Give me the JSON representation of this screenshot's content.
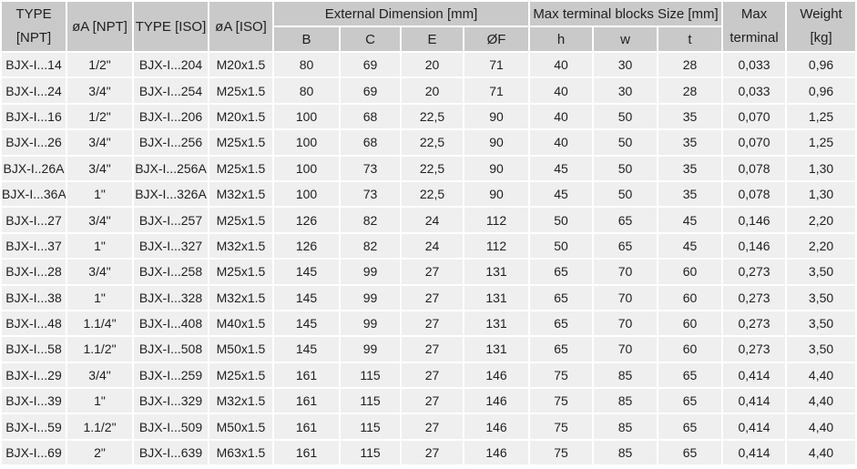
{
  "table": {
    "group_headers": {
      "external_dimension": "External Dimension [mm]",
      "max_terminal_blocks": "Max terminal blocks Size [mm]"
    },
    "headers": {
      "type_npt_line1": "TYPE",
      "type_npt_line2": "[NPT]",
      "dia_a_npt": "øA [NPT]",
      "type_iso": "TYPE [ISO]",
      "dia_a_iso": "øA [ISO]",
      "b": "B",
      "c": "C",
      "e": "E",
      "f": "ØF",
      "h": "h",
      "w": "w",
      "t": "t",
      "max_terminal_line1": "Max",
      "max_terminal_line2": "terminal",
      "weight_line1": "Weight",
      "weight_line2": "[kg]"
    },
    "column_ids": [
      "type-npt",
      "dia-a-npt",
      "type-iso",
      "dia-a-iso",
      "b",
      "c",
      "e",
      "f",
      "h",
      "w",
      "t",
      "max-terminal",
      "weight-kg"
    ],
    "rows": [
      [
        "BJX-I...14",
        "1/2\"",
        "BJX-I...204",
        "M20x1.5",
        "80",
        "69",
        "20",
        "71",
        "40",
        "30",
        "28",
        "0,033",
        "0,96"
      ],
      [
        "BJX-I...24",
        "3/4\"",
        "BJX-I...254",
        "M25x1.5",
        "80",
        "69",
        "20",
        "71",
        "40",
        "30",
        "28",
        "0,033",
        "0,96"
      ],
      [
        "BJX-I...16",
        "1/2\"",
        "BJX-I...206",
        "M20x1.5",
        "100",
        "68",
        "22,5",
        "90",
        "40",
        "50",
        "35",
        "0,070",
        "1,25"
      ],
      [
        "BJX-I...26",
        "3/4\"",
        "BJX-I...256",
        "M25x1.5",
        "100",
        "68",
        "22,5",
        "90",
        "40",
        "50",
        "35",
        "0,070",
        "1,25"
      ],
      [
        "BJX-I..26A",
        "3/4\"",
        "BJX-I...256A",
        "M25x1.5",
        "100",
        "73",
        "22,5",
        "90",
        "45",
        "50",
        "35",
        "0,078",
        "1,30"
      ],
      [
        "BJX-I...36A",
        "1\"",
        "BJX-I...326A",
        "M32x1.5",
        "100",
        "73",
        "22,5",
        "90",
        "45",
        "50",
        "35",
        "0,078",
        "1,30"
      ],
      [
        "BJX-I...27",
        "3/4\"",
        "BJX-I...257",
        "M25x1.5",
        "126",
        "82",
        "24",
        "112",
        "50",
        "65",
        "45",
        "0,146",
        "2,20"
      ],
      [
        "BJX-I...37",
        "1\"",
        "BJX-I...327",
        "M32x1.5",
        "126",
        "82",
        "24",
        "112",
        "50",
        "65",
        "45",
        "0,146",
        "2,20"
      ],
      [
        "BJX-I...28",
        "3/4\"",
        "BJX-I...258",
        "M25x1.5",
        "145",
        "99",
        "27",
        "131",
        "65",
        "70",
        "60",
        "0,273",
        "3,50"
      ],
      [
        "BJX-I...38",
        "1\"",
        "BJX-I...328",
        "M32x1.5",
        "145",
        "99",
        "27",
        "131",
        "65",
        "70",
        "60",
        "0,273",
        "3,50"
      ],
      [
        "BJX-I...48",
        "1.1/4\"",
        "BJX-I...408",
        "M40x1.5",
        "145",
        "99",
        "27",
        "131",
        "65",
        "70",
        "60",
        "0,273",
        "3,50"
      ],
      [
        "BJX-I...58",
        "1.1/2\"",
        "BJX-I...508",
        "M50x1.5",
        "145",
        "99",
        "27",
        "131",
        "65",
        "70",
        "60",
        "0,273",
        "3,50"
      ],
      [
        "BJX-I...29",
        "3/4\"",
        "BJX-I...259",
        "M25x1.5",
        "161",
        "115",
        "27",
        "146",
        "75",
        "85",
        "65",
        "0,414",
        "4,40"
      ],
      [
        "BJX-I...39",
        "1\"",
        "BJX-I...329",
        "M32x1.5",
        "161",
        "115",
        "27",
        "146",
        "75",
        "85",
        "65",
        "0,414",
        "4,40"
      ],
      [
        "BJX-I...59",
        "1.1/2\"",
        "BJX-I...509",
        "M50x1.5",
        "161",
        "115",
        "27",
        "146",
        "75",
        "85",
        "65",
        "0,414",
        "4,40"
      ],
      [
        "BJX-I...69",
        "2\"",
        "BJX-I...639",
        "M63x1.5",
        "161",
        "115",
        "27",
        "146",
        "75",
        "85",
        "65",
        "0,414",
        "4,40"
      ]
    ]
  },
  "colors": {
    "header_bg": "#c9c9c9",
    "cell_bg": "#efefef",
    "background": "#ffffff",
    "text": "#1f1f1f"
  }
}
